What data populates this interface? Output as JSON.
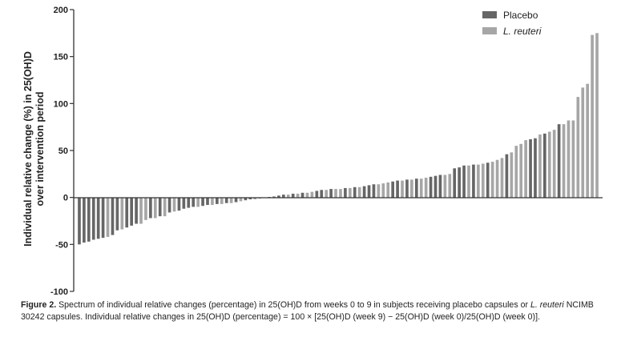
{
  "chart_data": {
    "type": "bar",
    "ylabel_line1": "Individual relative change (%) in 25(OH)D",
    "ylabel_line2": "over intervention period",
    "ylim": [
      -100,
      200
    ],
    "yticks": [
      "200",
      "150",
      "100",
      "50",
      "0",
      "-50",
      "-100"
    ],
    "grid": false,
    "legend_position": "top-right",
    "series": [
      {
        "name": "Placebo",
        "color": "#666666",
        "values": [
          -50,
          -48,
          -47,
          -45,
          -44,
          -43,
          -40,
          -35,
          -32,
          -30,
          -28,
          -22,
          -20,
          -16,
          -14,
          -12,
          -11,
          -10,
          -9,
          -8,
          -7,
          -6,
          -5,
          -3,
          -2,
          -1,
          0,
          0.5,
          1,
          2,
          3,
          4,
          5,
          7,
          8,
          9,
          10,
          11,
          12,
          13,
          14,
          17,
          18,
          19,
          20,
          22,
          23,
          24,
          31,
          32,
          34,
          35,
          37,
          46,
          62,
          63,
          68,
          78
        ]
      },
      {
        "name": "L. reuteri",
        "color": "#a6a6a6",
        "values": [
          -42,
          -34,
          -28,
          -24,
          -22,
          -20,
          -15,
          -10,
          -8,
          -7,
          -6,
          -4,
          -2,
          3,
          4,
          5,
          6,
          8,
          9,
          9,
          10,
          11,
          14,
          15,
          16,
          18,
          19,
          20,
          21,
          24,
          25,
          34,
          35,
          36,
          38,
          40,
          42,
          48,
          55,
          57,
          61,
          67,
          70,
          72,
          78,
          82,
          82,
          107,
          117,
          121,
          173,
          175
        ]
      }
    ]
  },
  "caption": {
    "figure_label": "Figure 2.",
    "text_part1": " Spectrum of individual relative changes (percentage) in 25(OH)D from weeks 0 to 9 in subjects receiving placebo capsules or ",
    "italic_term": "L. reuteri",
    "text_part2": " NCIMB 30242 capsules. Individual relative changes in 25(OH)D (percentage) = 100 × [25(OH)D (week 9) − 25(OH)D (week 0)/25(OH)D (week 0)]."
  }
}
